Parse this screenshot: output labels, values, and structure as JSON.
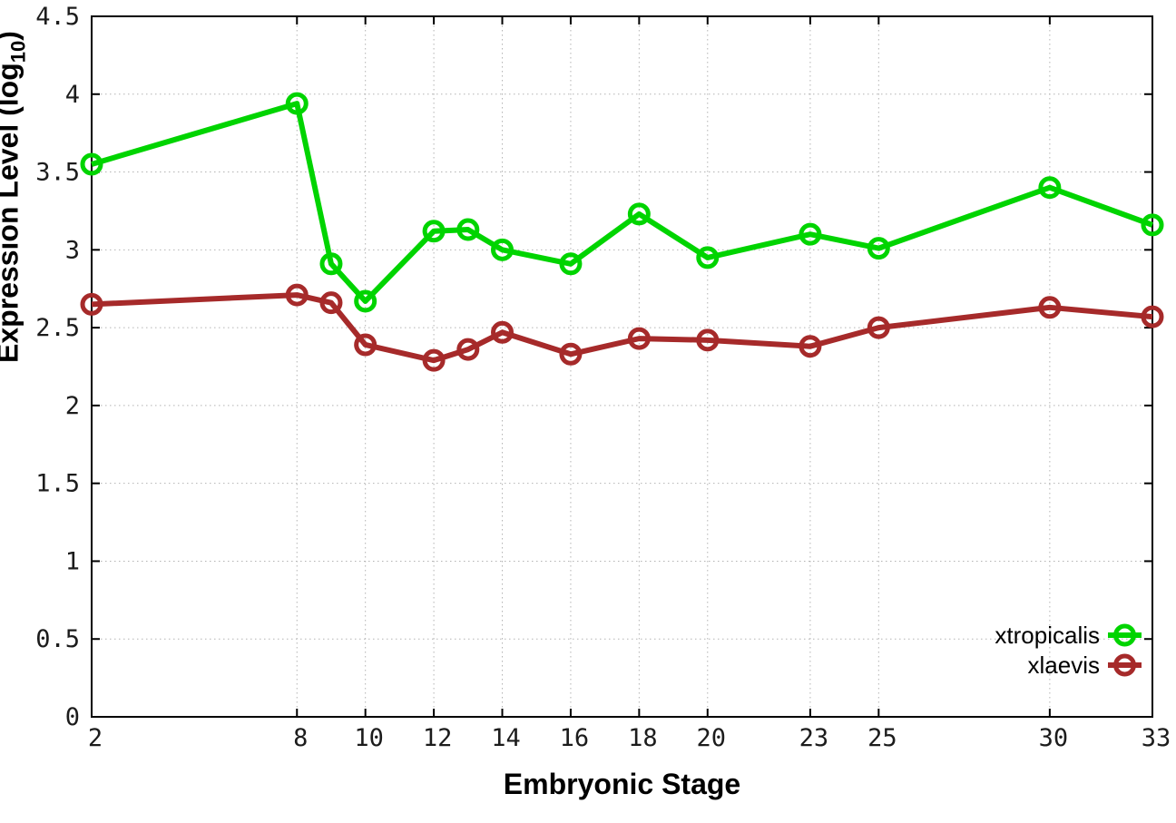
{
  "figure": {
    "background": "#ffffff",
    "border_color": "#000000",
    "grid_color": "#b3b3b3"
  },
  "axes": {
    "x_title": "Embryonic Stage",
    "y_title_prefix": "Expression Level (log",
    "y_title_sub": "10",
    "y_title_suffix": ")"
  },
  "chart_data": {
    "type": "line",
    "title": "",
    "xlabel": "Embryonic Stage",
    "ylabel": "Expression Level (log10)",
    "xlim": [
      2,
      33
    ],
    "ylim": [
      0,
      4.5
    ],
    "grid": true,
    "legend_position": "bottom-right-inside",
    "xticks": [
      2,
      8,
      10,
      12,
      14,
      16,
      18,
      20,
      23,
      25,
      30,
      33
    ],
    "yticks": [
      0,
      0.5,
      1,
      1.5,
      2,
      2.5,
      3,
      3.5,
      4,
      4.5
    ],
    "ytick_labels": [
      "0",
      "0.5",
      "1",
      "1.5",
      "2",
      "2.5",
      "3",
      "3.5",
      "4",
      "4.5"
    ],
    "x": [
      2,
      8,
      9,
      10,
      12,
      13,
      14,
      16,
      18,
      20,
      23,
      25,
      30,
      33
    ],
    "series": [
      {
        "name": "xtropicalis",
        "color": "#00d400",
        "marker": "open-circle",
        "values": [
          3.55,
          3.94,
          2.91,
          2.67,
          3.12,
          3.13,
          3.0,
          2.91,
          3.23,
          2.95,
          3.1,
          3.01,
          3.4,
          3.16
        ]
      },
      {
        "name": "xlaevis",
        "color": "#a62a2a",
        "marker": "open-circle",
        "values": [
          2.65,
          2.71,
          2.66,
          2.39,
          2.29,
          2.36,
          2.47,
          2.33,
          2.43,
          2.42,
          2.38,
          2.5,
          2.63,
          2.57
        ]
      }
    ]
  }
}
